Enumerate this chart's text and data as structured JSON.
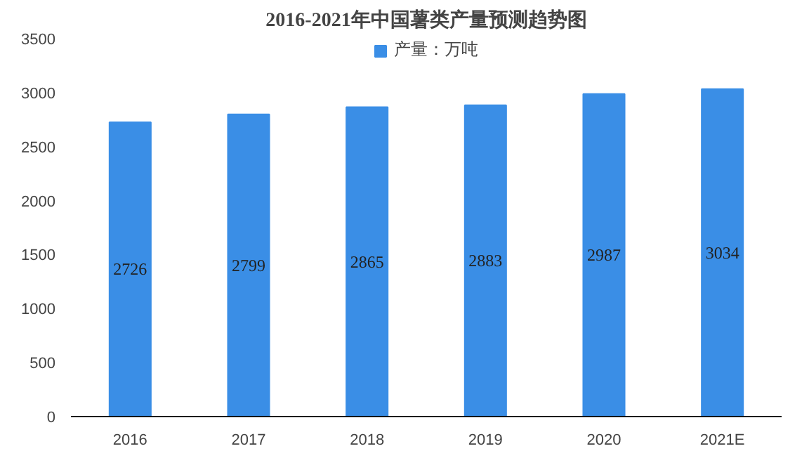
{
  "chart_data": {
    "type": "bar",
    "title": "2016-2021年中国薯类产量预测趋势图",
    "categories": [
      "2016",
      "2017",
      "2018",
      "2019",
      "2020",
      "2021E"
    ],
    "series": [
      {
        "name": "产量：万吨",
        "color": "#3a8ee6",
        "values": [
          2726,
          2799,
          2865,
          2883,
          2987,
          3034
        ]
      }
    ],
    "ylim": [
      0,
      3500
    ],
    "yticks": [
      0,
      500,
      1000,
      1500,
      2000,
      2500,
      3000,
      3500
    ],
    "grid": false,
    "legend": "top",
    "data_labels": true
  }
}
